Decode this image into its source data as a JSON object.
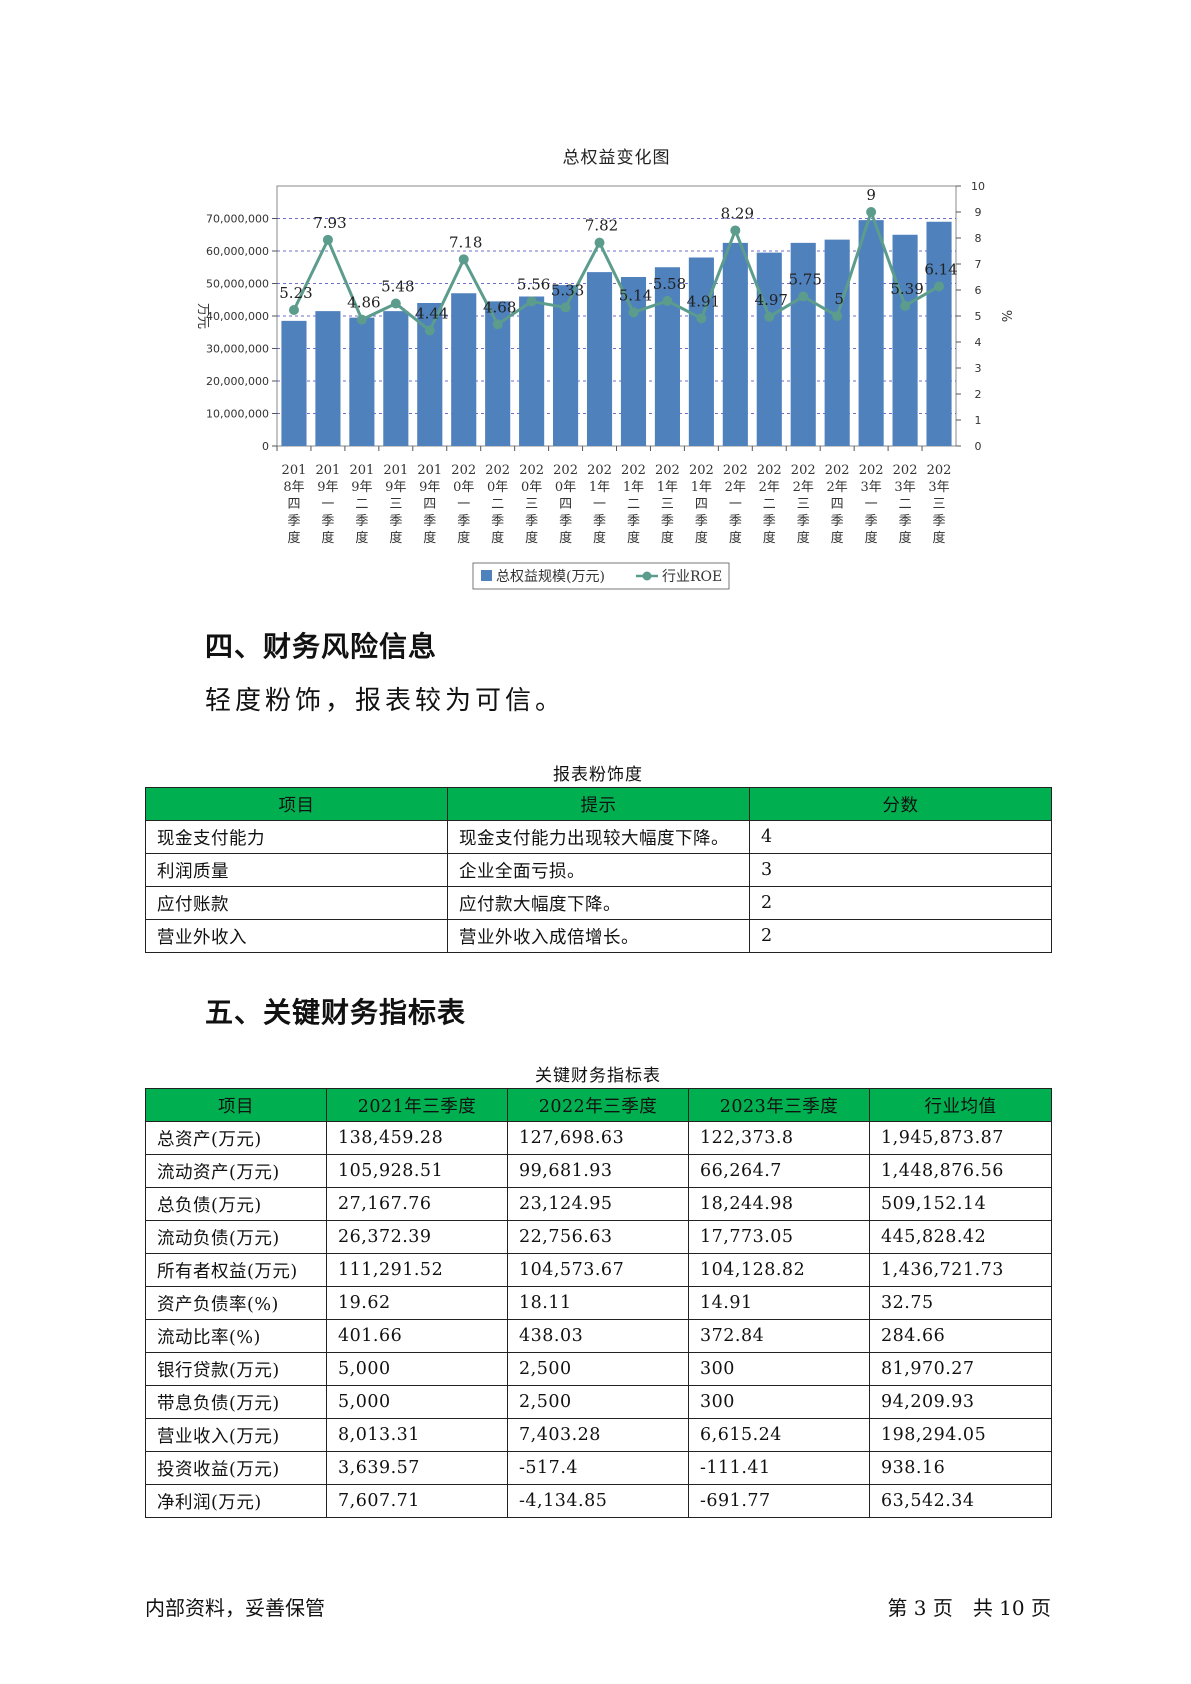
{
  "chart_data": {
    "type": "bar",
    "title": "总权益变化图",
    "categories": [
      "2018年四季度",
      "2019年一季度",
      "2019年二季度",
      "2019年三季度",
      "2019年四季度",
      "2020年一季度",
      "2020年二季度",
      "2020年三季度",
      "2020年四季度",
      "2021年一季度",
      "2021年二季度",
      "2021年三季度",
      "2021年四季度",
      "2022年一季度",
      "2022年二季度",
      "2022年三季度",
      "2022年四季度",
      "2023年一季度",
      "2023年二季度",
      "2023年三季度"
    ],
    "category_labels": [
      [
        "201",
        "8年",
        "四",
        "季",
        "度"
      ],
      [
        "201",
        "9年",
        "一",
        "季",
        "度"
      ],
      [
        "201",
        "9年",
        "二",
        "季",
        "度"
      ],
      [
        "201",
        "9年",
        "三",
        "季",
        "度"
      ],
      [
        "201",
        "9年",
        "四",
        "季",
        "度"
      ],
      [
        "202",
        "0年",
        "一",
        "季",
        "度"
      ],
      [
        "202",
        "0年",
        "二",
        "季",
        "度"
      ],
      [
        "202",
        "0年",
        "三",
        "季",
        "度"
      ],
      [
        "202",
        "0年",
        "四",
        "季",
        "度"
      ],
      [
        "202",
        "1年",
        "一",
        "季",
        "度"
      ],
      [
        "202",
        "1年",
        "二",
        "季",
        "度"
      ],
      [
        "202",
        "1年",
        "三",
        "季",
        "度"
      ],
      [
        "202",
        "1年",
        "四",
        "季",
        "度"
      ],
      [
        "202",
        "2年",
        "一",
        "季",
        "度"
      ],
      [
        "202",
        "2年",
        "二",
        "季",
        "度"
      ],
      [
        "202",
        "2年",
        "三",
        "季",
        "度"
      ],
      [
        "202",
        "2年",
        "四",
        "季",
        "度"
      ],
      [
        "202",
        "3年",
        "一",
        "季",
        "度"
      ],
      [
        "202",
        "3年",
        "二",
        "季",
        "度"
      ],
      [
        "202",
        "3年",
        "三",
        "季",
        "度"
      ]
    ],
    "series": [
      {
        "name": "总权益规模(万元)",
        "type": "bar",
        "axis": "left",
        "color": "#4f81bd",
        "values": [
          38500000,
          41500000,
          39500000,
          41500000,
          44000000,
          47000000,
          44500000,
          46000000,
          49500000,
          53500000,
          52000000,
          55000000,
          58000000,
          62500000,
          59500000,
          62500000,
          63500000,
          69500000,
          65000000,
          69000000
        ]
      },
      {
        "name": "行业ROE",
        "type": "line",
        "axis": "right",
        "color": "#5b9c8c",
        "values": [
          5.23,
          7.93,
          4.86,
          5.48,
          4.44,
          7.18,
          4.68,
          5.56,
          5.33,
          7.82,
          5.14,
          5.58,
          4.91,
          8.29,
          4.97,
          5.75,
          5,
          9,
          5.39,
          6.14
        ],
        "labels": [
          "5.23",
          "7.93",
          "4.86",
          "5.48",
          "4.44",
          "7.18",
          "4.68",
          "5.56",
          "5.33",
          "7.82",
          "5.14",
          "5.58",
          "4.91",
          "8.29",
          "4.97",
          "5.75",
          "5",
          "9",
          "5.39",
          "6.14"
        ]
      }
    ],
    "ylabel": "万元",
    "y2label": "%",
    "ylim": [
      0,
      80000000
    ],
    "y2lim": [
      0,
      10
    ],
    "yticks": [
      "0",
      "10,000,000",
      "20,000,000",
      "30,000,000",
      "40,000,000",
      "50,000,000",
      "60,000,000",
      "70,000,000"
    ],
    "y2ticks": [
      "0",
      "1",
      "2",
      "3",
      "4",
      "5",
      "6",
      "7",
      "8",
      "9",
      "10"
    ],
    "grid": true,
    "legend_position": "bottom"
  },
  "section4": {
    "heading": "四、财务风险信息",
    "text": "轻度粉饰，报表较为可信。",
    "table_caption": "报表粉饰度",
    "headers": [
      "项目",
      "提示",
      "分数"
    ],
    "rows": [
      [
        "现金支付能力",
        "现金支付能力出现较大幅度下降。",
        "4"
      ],
      [
        "利润质量",
        "企业全面亏损。",
        "3"
      ],
      [
        "应付账款",
        "应付款大幅度下降。",
        "2"
      ],
      [
        "营业外收入",
        "营业外收入成倍增长。",
        "2"
      ]
    ]
  },
  "section5": {
    "heading": "五、关键财务指标表",
    "table_caption": "关键财务指标表",
    "headers": [
      "项目",
      "2021年三季度",
      "2022年三季度",
      "2023年三季度",
      "行业均值"
    ],
    "rows": [
      [
        "总资产(万元)",
        "138,459.28",
        "127,698.63",
        "122,373.8",
        "1,945,873.87"
      ],
      [
        "流动资产(万元)",
        "105,928.51",
        "99,681.93",
        "66,264.7",
        "1,448,876.56"
      ],
      [
        "总负债(万元)",
        "27,167.76",
        "23,124.95",
        "18,244.98",
        "509,152.14"
      ],
      [
        "流动负债(万元)",
        "26,372.39",
        "22,756.63",
        "17,773.05",
        "445,828.42"
      ],
      [
        "所有者权益(万元)",
        "111,291.52",
        "104,573.67",
        "104,128.82",
        "1,436,721.73"
      ],
      [
        "资产负债率(%)",
        "19.62",
        "18.11",
        "14.91",
        "32.75"
      ],
      [
        "流动比率(%)",
        "401.66",
        "438.03",
        "372.84",
        "284.66"
      ],
      [
        "银行贷款(万元)",
        "5,000",
        "2,500",
        "300",
        "81,970.27"
      ],
      [
        "带息负债(万元)",
        "5,000",
        "2,500",
        "300",
        "94,209.93"
      ],
      [
        "营业收入(万元)",
        "8,013.31",
        "7,403.28",
        "6,615.24",
        "198,294.05"
      ],
      [
        "投资收益(万元)",
        "3,639.57",
        "-517.4",
        "-111.41",
        "938.16"
      ],
      [
        "净利润(万元)",
        "7,607.71",
        "-4,134.85",
        "-691.77",
        "63,542.34"
      ]
    ]
  },
  "footer": {
    "left": "内部资料，妥善保管",
    "right": "第 3 页　共 10 页"
  }
}
